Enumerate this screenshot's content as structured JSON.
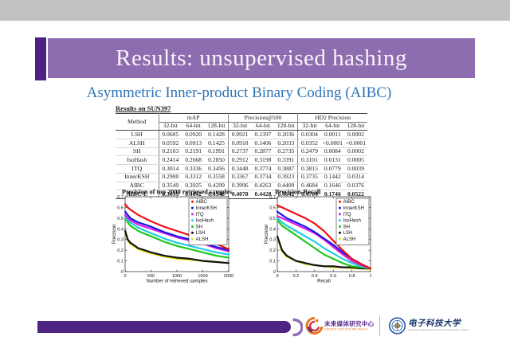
{
  "header": {
    "title": "Results: unsupervised hashing"
  },
  "subtitle": "Asymmetric Inner-product Binary Coding (AIBC)",
  "colors": {
    "banner": "#8e6cb0",
    "accent_square": "#4b2182",
    "subtitle_blue": "#2e74b6",
    "footer_bar": "#4f2483",
    "top_bar_gray": "#c2c1c1",
    "cfm_purple": "#5b2d8e",
    "cfm_orange": "#e87722",
    "uestc_blue": "#17356b"
  },
  "table": {
    "title": "Results on SUN397",
    "method_header": "Method",
    "groups": [
      {
        "label": "mAP"
      },
      {
        "label": "Precision@500"
      },
      {
        "label": "HD2 Precision"
      }
    ],
    "subcolumns": [
      "32-bit",
      "64-bit",
      "128-bit"
    ],
    "rows": [
      {
        "method": "LSH",
        "values": [
          "0.0605",
          "0.0920",
          "0.1428",
          "0.0921",
          "0.1397",
          "0.2036",
          "0.0304",
          "0.0011",
          "0.0002"
        ],
        "bold": false
      },
      {
        "method": "ALSH",
        "values": [
          "0.0592",
          "0.0913",
          "0.1425",
          "0.0918",
          "0.1406",
          "0.2033",
          "0.0352",
          "<0.0001",
          "<0.0001"
        ],
        "bold": false
      },
      {
        "method": "SH",
        "values": [
          "0.2103",
          "0.2191",
          "0.1991",
          "0.2737",
          "0.2877",
          "0.2735",
          "0.2479",
          "0.0084",
          "0.0002"
        ],
        "bold": false
      },
      {
        "method": "IsoHash",
        "values": [
          "0.2414",
          "0.2668",
          "0.2850",
          "0.2912",
          "0.3198",
          "0.3391",
          "0.3101",
          "0.0131",
          "0.0005"
        ],
        "bold": false
      },
      {
        "method": "ITQ",
        "values": [
          "0.3014",
          "0.3336",
          "0.3456",
          "0.3448",
          "0.3774",
          "0.3887",
          "0.3815",
          "0.0779",
          "0.0039"
        ],
        "bold": false
      },
      {
        "method": "InnerKSH",
        "values": [
          "0.2900",
          "0.3312",
          "0.3558",
          "0.3367",
          "0.3734",
          "0.3923",
          "0.3735",
          "0.1442",
          "0.0314"
        ],
        "bold": false
      },
      {
        "method": "AIBC",
        "values": [
          "0.3549",
          "0.3925",
          "0.4299",
          "0.3996",
          "0.4263",
          "0.4409",
          "0.4684",
          "0.1646",
          "0.0376"
        ],
        "bold": false
      },
      {
        "method": "AIBC-L",
        "values": [
          "0.3639",
          "0.4042",
          "0.4348",
          "0.4078",
          "0.4428",
          "0.4642",
          "0.4704",
          "0.1746",
          "0.0522"
        ],
        "bold": true
      }
    ]
  },
  "chart_data": [
    {
      "type": "line",
      "title": "Precision of top 2000 retrieved samples",
      "xlabel": "Number of retrieved samples",
      "ylabel": "Precision",
      "xlim": [
        0,
        2000
      ],
      "ylim": [
        0,
        0.7
      ],
      "xticks": [
        0,
        500,
        1000,
        1500,
        2000
      ],
      "yticks": [
        0,
        0.1,
        0.2,
        0.3,
        0.4,
        0.5,
        0.6,
        0.7
      ],
      "grid": false,
      "legend_position": "top-right",
      "x": [
        1,
        50,
        100,
        250,
        500,
        750,
        1000,
        1250,
        1500,
        1750,
        2000
      ],
      "series": [
        {
          "name": "AIBC",
          "color": "#ee1111",
          "values": [
            0.63,
            0.6,
            0.58,
            0.53,
            0.47,
            0.42,
            0.38,
            0.34,
            0.3,
            0.26,
            0.21
          ]
        },
        {
          "name": "InnerKSH",
          "color": "#1818e6",
          "values": [
            0.56,
            0.53,
            0.5,
            0.46,
            0.42,
            0.37,
            0.33,
            0.3,
            0.27,
            0.23,
            0.2
          ]
        },
        {
          "name": "ITQ",
          "color": "#e020e0",
          "values": [
            0.53,
            0.5,
            0.48,
            0.44,
            0.4,
            0.36,
            0.32,
            0.29,
            0.26,
            0.22,
            0.19
          ]
        },
        {
          "name": "IsoHash",
          "color": "#20cce6",
          "values": [
            0.52,
            0.48,
            0.46,
            0.41,
            0.36,
            0.31,
            0.27,
            0.24,
            0.21,
            0.18,
            0.16
          ]
        },
        {
          "name": "SH",
          "color": "#1fc81f",
          "values": [
            0.5,
            0.46,
            0.43,
            0.38,
            0.33,
            0.28,
            0.24,
            0.21,
            0.18,
            0.15,
            0.13
          ]
        },
        {
          "name": "LSH",
          "color": "#111111",
          "values": [
            0.38,
            0.3,
            0.27,
            0.22,
            0.18,
            0.15,
            0.13,
            0.12,
            0.1,
            0.09,
            0.08
          ]
        },
        {
          "name": "ALSH",
          "color": "#e2e21a",
          "values": [
            0.38,
            0.29,
            0.26,
            0.21,
            0.17,
            0.14,
            0.12,
            0.11,
            0.1,
            0.09,
            0.08
          ]
        }
      ]
    },
    {
      "type": "line",
      "title": "Precision-Recall",
      "xlabel": "Recall",
      "ylabel": "Precision",
      "xlim": [
        0,
        1
      ],
      "ylim": [
        0,
        0.7
      ],
      "xticks": [
        0,
        0.2,
        0.4,
        0.6,
        0.8,
        1
      ],
      "yticks": [
        0,
        0.1,
        0.2,
        0.3,
        0.4,
        0.5,
        0.6,
        0.7
      ],
      "grid": false,
      "legend_position": "top-right",
      "x": [
        0,
        0.05,
        0.1,
        0.2,
        0.3,
        0.4,
        0.5,
        0.6,
        0.7,
        0.8,
        0.9,
        1.0
      ],
      "series": [
        {
          "name": "AIBC",
          "color": "#ee1111",
          "values": [
            0.62,
            0.6,
            0.58,
            0.54,
            0.5,
            0.45,
            0.38,
            0.29,
            0.2,
            0.12,
            0.07,
            0.03
          ]
        },
        {
          "name": "InnerKSH",
          "color": "#1818e6",
          "values": [
            0.56,
            0.53,
            0.5,
            0.46,
            0.42,
            0.37,
            0.31,
            0.25,
            0.18,
            0.12,
            0.07,
            0.03
          ]
        },
        {
          "name": "ITQ",
          "color": "#e020e0",
          "values": [
            0.52,
            0.5,
            0.48,
            0.44,
            0.4,
            0.36,
            0.3,
            0.23,
            0.16,
            0.1,
            0.06,
            0.03
          ]
        },
        {
          "name": "IsoHash",
          "color": "#20cce6",
          "values": [
            0.5,
            0.46,
            0.43,
            0.38,
            0.33,
            0.28,
            0.22,
            0.17,
            0.12,
            0.08,
            0.05,
            0.03
          ]
        },
        {
          "name": "SH",
          "color": "#1fc81f",
          "values": [
            0.48,
            0.43,
            0.4,
            0.34,
            0.28,
            0.22,
            0.16,
            0.12,
            0.08,
            0.05,
            0.04,
            0.03
          ]
        },
        {
          "name": "LSH",
          "color": "#111111",
          "values": [
            0.33,
            0.2,
            0.15,
            0.1,
            0.08,
            0.06,
            0.05,
            0.05,
            0.04,
            0.04,
            0.03,
            0.03
          ]
        },
        {
          "name": "ALSH",
          "color": "#e2e21a",
          "values": [
            0.32,
            0.19,
            0.14,
            0.1,
            0.07,
            0.06,
            0.05,
            0.04,
            0.04,
            0.03,
            0.03,
            0.02
          ]
        }
      ]
    }
  ],
  "footer": {
    "cfm": {
      "name_zh": "未来媒体研究中心",
      "name_en": "CENTER FOR FUTURE MEDIA"
    },
    "uestc": {
      "name_zh": "电子科技大学",
      "name_en": "University of Electronic Science and Technology of China"
    }
  }
}
